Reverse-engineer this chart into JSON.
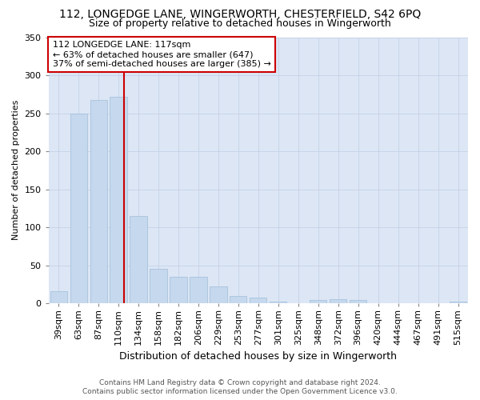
{
  "title": "112, LONGEDGE LANE, WINGERWORTH, CHESTERFIELD, S42 6PQ",
  "subtitle": "Size of property relative to detached houses in Wingerworth",
  "xlabel": "Distribution of detached houses by size in Wingerworth",
  "ylabel": "Number of detached properties",
  "categories": [
    "39sqm",
    "63sqm",
    "87sqm",
    "110sqm",
    "134sqm",
    "158sqm",
    "182sqm",
    "206sqm",
    "229sqm",
    "253sqm",
    "277sqm",
    "301sqm",
    "325sqm",
    "348sqm",
    "372sqm",
    "396sqm",
    "420sqm",
    "444sqm",
    "467sqm",
    "491sqm",
    "515sqm"
  ],
  "values": [
    16,
    250,
    267,
    272,
    115,
    45,
    35,
    35,
    22,
    10,
    7,
    2,
    0,
    4,
    5,
    4,
    0,
    0,
    0,
    0,
    2
  ],
  "bar_color": "#c5d8ed",
  "bar_edge_color": "#a0bdd8",
  "grid_color": "#c8d4e8",
  "bg_color": "#dce6f5",
  "vline_color": "#cc0000",
  "annotation_text": "112 LONGEDGE LANE: 117sqm\n← 63% of detached houses are smaller (647)\n37% of semi-detached houses are larger (385) →",
  "annotation_box_color": "#cc0000",
  "footer_line1": "Contains HM Land Registry data © Crown copyright and database right 2024.",
  "footer_line2": "Contains public sector information licensed under the Open Government Licence v3.0.",
  "ylim": [
    0,
    350
  ],
  "yticks": [
    0,
    50,
    100,
    150,
    200,
    250,
    300,
    350
  ],
  "title_fontsize": 10,
  "subtitle_fontsize": 9,
  "ylabel_fontsize": 8,
  "xlabel_fontsize": 9,
  "tick_fontsize": 8,
  "annotation_fontsize": 8,
  "footer_fontsize": 6.5,
  "vline_pos": 3.29
}
